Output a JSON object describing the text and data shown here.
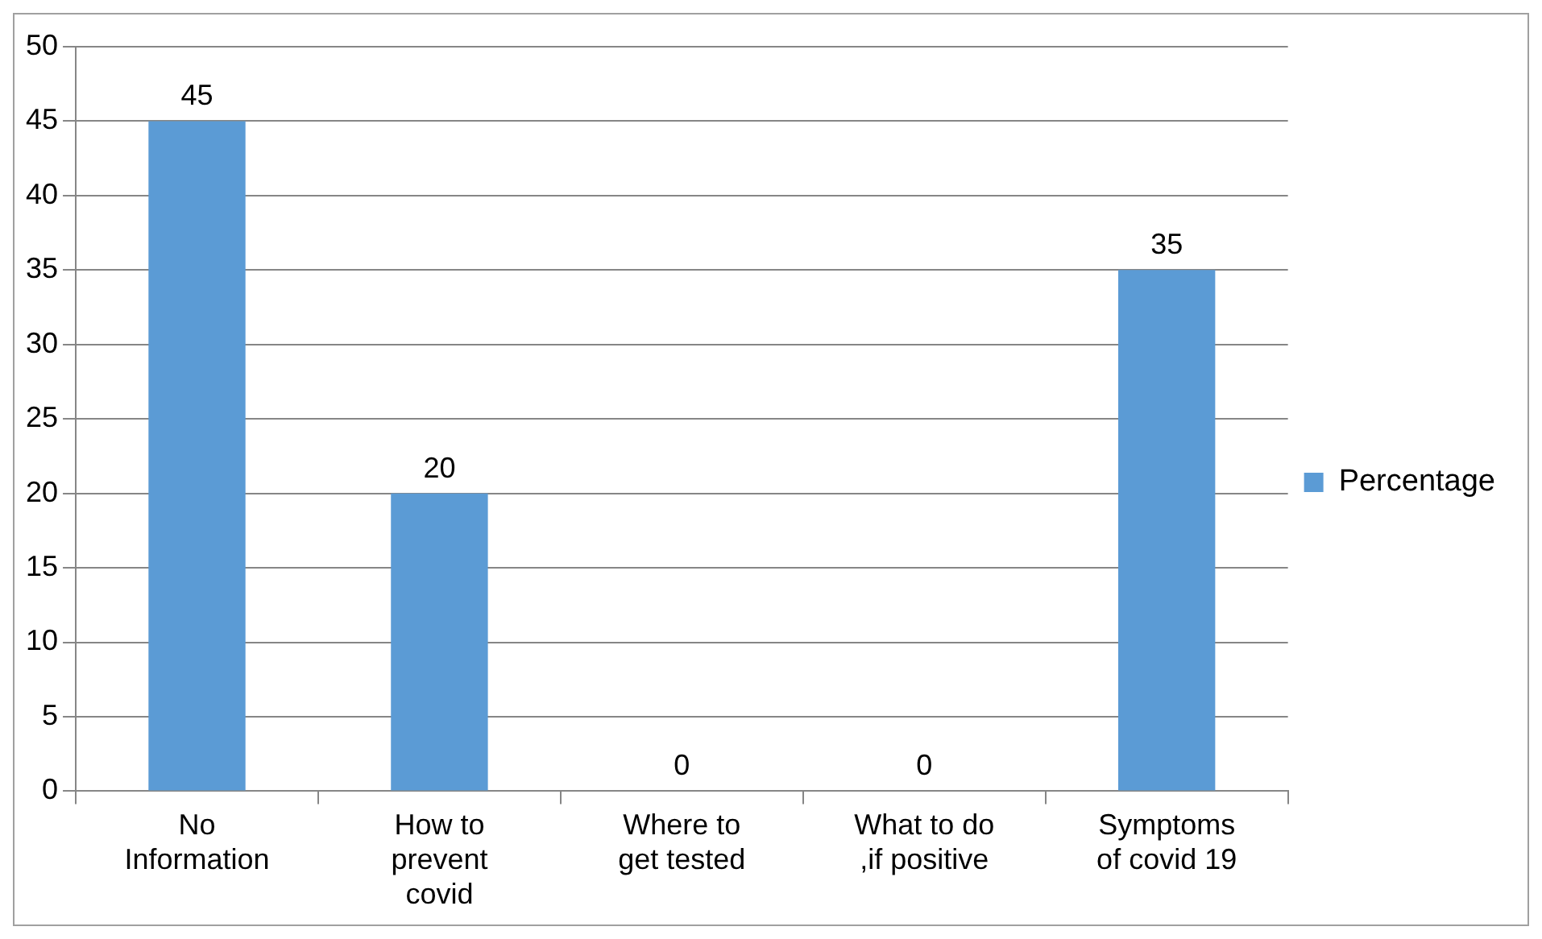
{
  "chart_data": {
    "type": "bar",
    "categories": [
      "No Information",
      "How to prevent covid",
      "Where to get tested",
      "What to do ,if positive",
      "Symptoms of covid 19"
    ],
    "series": [
      {
        "name": "Percentage",
        "color": "#5b9bd5",
        "values": [
          45,
          20,
          0,
          0,
          35
        ]
      }
    ],
    "ylim": [
      0,
      50
    ],
    "yticks": [
      0,
      5,
      10,
      15,
      20,
      25,
      30,
      35,
      40,
      45,
      50
    ],
    "grid": "y",
    "legend": "right",
    "data_labels": true
  }
}
